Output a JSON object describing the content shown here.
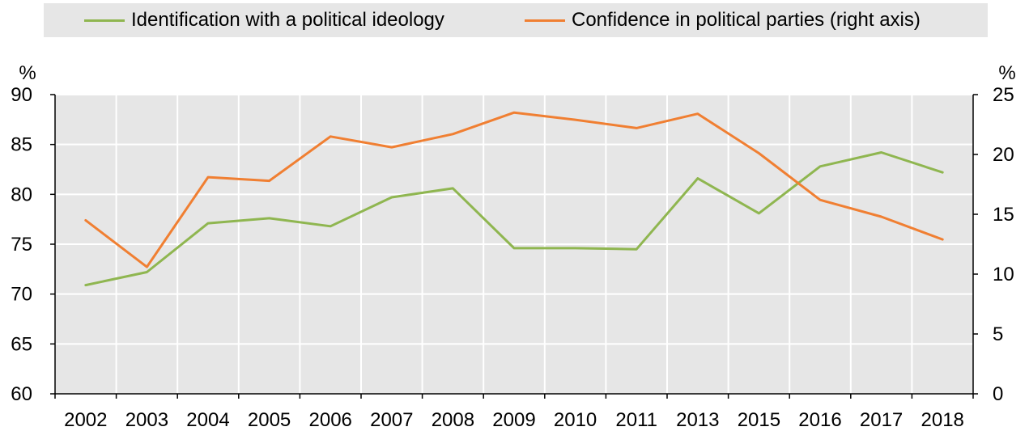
{
  "legend": {
    "items": [
      {
        "label": "Identification with a political ideology",
        "color": "#8fb650"
      },
      {
        "label": "Confidence in political parties (right axis)",
        "color": "#f07f32"
      }
    ]
  },
  "axes": {
    "left_unit": "%",
    "right_unit": "%"
  },
  "chart_data": {
    "type": "line",
    "categories": [
      "2002",
      "2003",
      "2004",
      "2005",
      "2006",
      "2007",
      "2008",
      "2009",
      "2010",
      "2011",
      "2013",
      "2015",
      "2016",
      "2017",
      "2018"
    ],
    "series": [
      {
        "name": "Identification with a political ideology",
        "axis": "left",
        "color": "#8fb650",
        "values": [
          70.9,
          72.2,
          77.1,
          77.6,
          76.8,
          79.7,
          80.6,
          74.6,
          74.6,
          74.5,
          81.6,
          78.1,
          82.8,
          84.2,
          82.2
        ]
      },
      {
        "name": "Confidence in political parties (right axis)",
        "axis": "right",
        "color": "#f07f32",
        "values": [
          14.5,
          10.6,
          18.1,
          17.8,
          21.5,
          20.6,
          21.7,
          23.5,
          22.9,
          22.2,
          23.4,
          20.1,
          16.2,
          14.8,
          12.9
        ]
      }
    ],
    "y_left": {
      "min": 60,
      "max": 90,
      "ticks": [
        60,
        65,
        70,
        75,
        80,
        85,
        90
      ]
    },
    "y_right": {
      "min": 0,
      "max": 25,
      "ticks": [
        0,
        5,
        10,
        15,
        20,
        25
      ]
    },
    "grid": true,
    "legend_position": "top"
  }
}
